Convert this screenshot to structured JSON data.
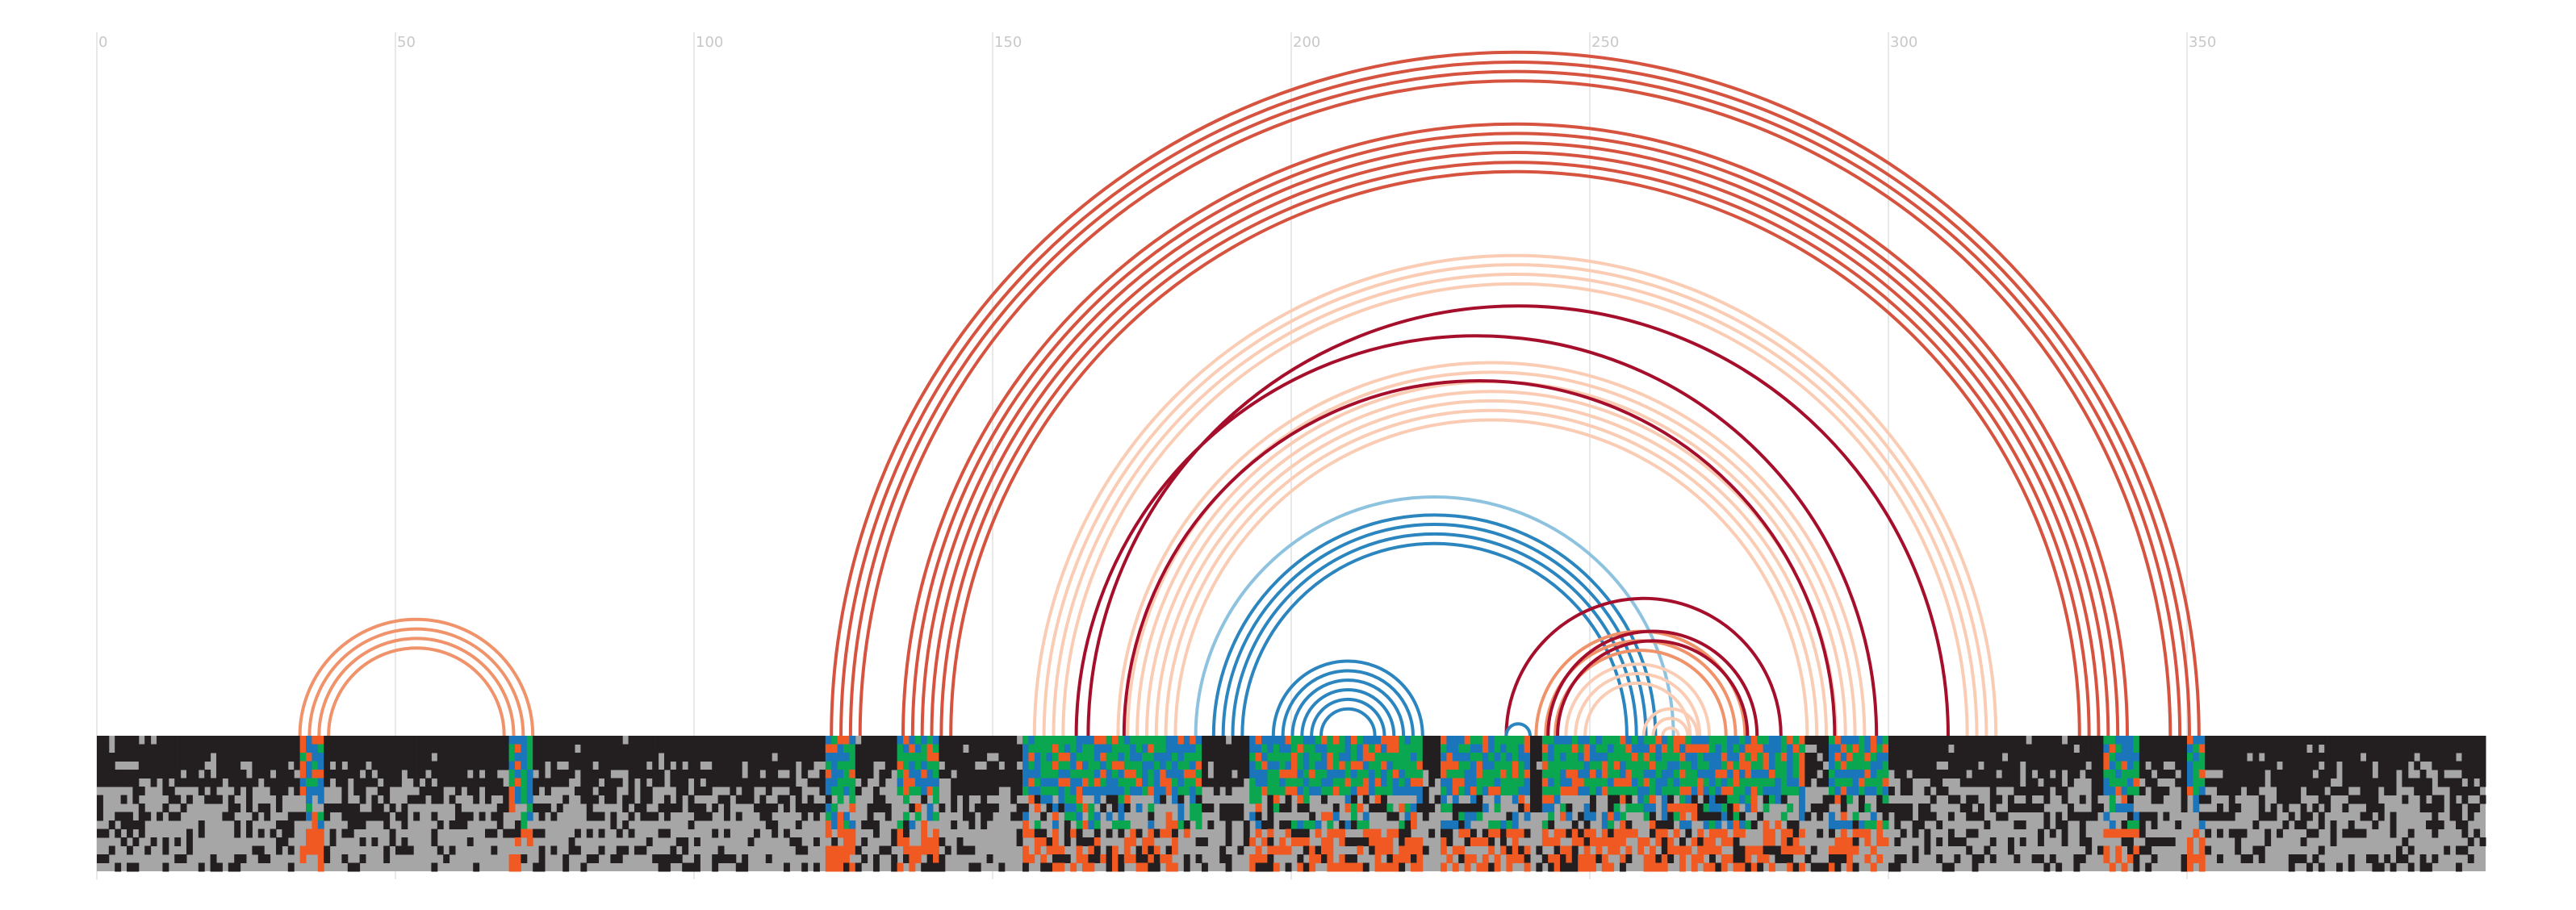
{
  "axis": {
    "min": 0,
    "max": 400,
    "ticks": [
      0,
      50,
      100,
      150,
      200,
      250,
      300,
      350
    ],
    "tick_labels": [
      "0",
      "50",
      "100",
      "150",
      "200",
      "250",
      "300",
      "350"
    ],
    "gridlines": true
  },
  "colors": {
    "grid": "#e8e8e8",
    "tick_text": "#c8c8c8",
    "background": "#ffffff",
    "alignment_gap": "#a6a6a6",
    "alignment_dark": "#231f20",
    "nucleotide_orange": "#f05a22",
    "nucleotide_green": "#0aa650",
    "nucleotide_blue": "#1a75bb",
    "arc_dark_red": "#a50f2b",
    "arc_red": "#d6543f",
    "arc_orange": "#f0926a",
    "arc_light": "#fbccb4",
    "arc_blue": "#2b85be",
    "arc_light_blue": "#8ec3e0"
  },
  "chart_data": {
    "type": "arc-diagram with sequence alignment",
    "x_range": [
      0,
      400
    ],
    "arc_groups": [
      {
        "left": 34,
        "right": 73,
        "count": 4,
        "color": "arc_orange"
      },
      {
        "left": 123,
        "right": 352,
        "count": 4,
        "color": "arc_red"
      },
      {
        "left": 135,
        "right": 340,
        "count": 6,
        "color": "arc_red"
      },
      {
        "left": 157,
        "right": 318,
        "count": 4,
        "color": "arc_light"
      },
      {
        "left": 164,
        "right": 298,
        "count": 1,
        "color": "arc_dark_red"
      },
      {
        "left": 166,
        "right": 310,
        "count": 1,
        "color": "arc_dark_red"
      },
      {
        "left": 171,
        "right": 296,
        "count": 7,
        "color": "arc_light"
      },
      {
        "left": 172,
        "right": 291,
        "count": 1,
        "color": "arc_dark_red"
      },
      {
        "left": 184,
        "right": 264,
        "count": 1,
        "color": "arc_light_blue"
      },
      {
        "left": 187,
        "right": 261,
        "count": 4,
        "color": "arc_blue"
      },
      {
        "left": 197,
        "right": 222,
        "count": 6,
        "color": "arc_blue"
      },
      {
        "left": 236,
        "right": 282,
        "count": 1,
        "color": "arc_dark_red"
      },
      {
        "left": 241,
        "right": 276,
        "count": 3,
        "color": "arc_orange"
      },
      {
        "left": 243,
        "right": 278,
        "count": 2,
        "color": "arc_dark_red"
      },
      {
        "left": 246,
        "right": 270,
        "count": 3,
        "color": "arc_light"
      },
      {
        "left": 259,
        "right": 268,
        "count": 3,
        "color": "arc_light"
      },
      {
        "left": 236,
        "right": 240,
        "count": 1,
        "color": "arc_blue"
      }
    ],
    "alignment": {
      "rows": 16,
      "columns": 400,
      "colored_blocks": [
        {
          "start": 34,
          "end": 38
        },
        {
          "start": 69,
          "end": 73
        },
        {
          "start": 122,
          "end": 127
        },
        {
          "start": 134,
          "end": 141
        },
        {
          "start": 155,
          "end": 185
        },
        {
          "start": 193,
          "end": 222
        },
        {
          "start": 225,
          "end": 240
        },
        {
          "start": 242,
          "end": 286
        },
        {
          "start": 290,
          "end": 300
        },
        {
          "start": 336,
          "end": 342
        },
        {
          "start": 350,
          "end": 353
        }
      ]
    }
  }
}
